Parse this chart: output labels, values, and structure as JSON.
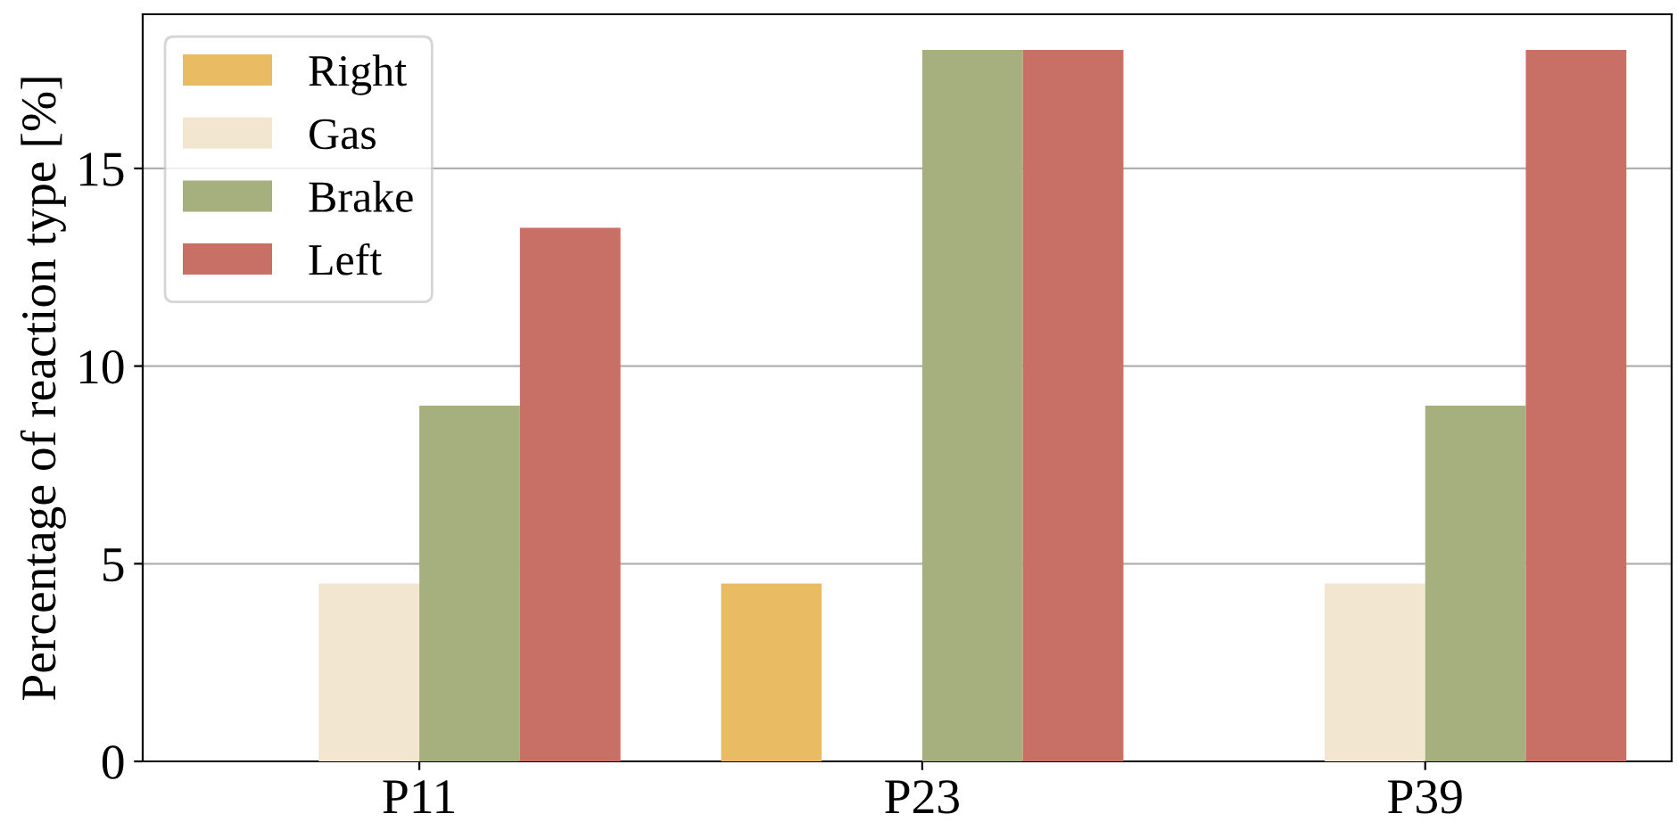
{
  "chart_data": {
    "type": "bar",
    "ylabel": "Percentage of reaction type [%]",
    "categories": [
      "P11",
      "P23",
      "P39"
    ],
    "series": [
      {
        "name": "Right",
        "color": "#e9bb62",
        "values": [
          0,
          4.5,
          0
        ]
      },
      {
        "name": "Gas",
        "color": "#f2e6d0",
        "values": [
          4.5,
          0,
          4.5
        ]
      },
      {
        "name": "Brake",
        "color": "#a6b07e",
        "values": [
          9,
          18,
          9
        ]
      },
      {
        "name": "Left",
        "color": "#c87065",
        "values": [
          13.5,
          18,
          18
        ]
      }
    ],
    "ylim": [
      0,
      18.9
    ],
    "yticks": [
      0,
      5,
      10,
      15
    ],
    "grid": "y",
    "legend": "top left"
  }
}
